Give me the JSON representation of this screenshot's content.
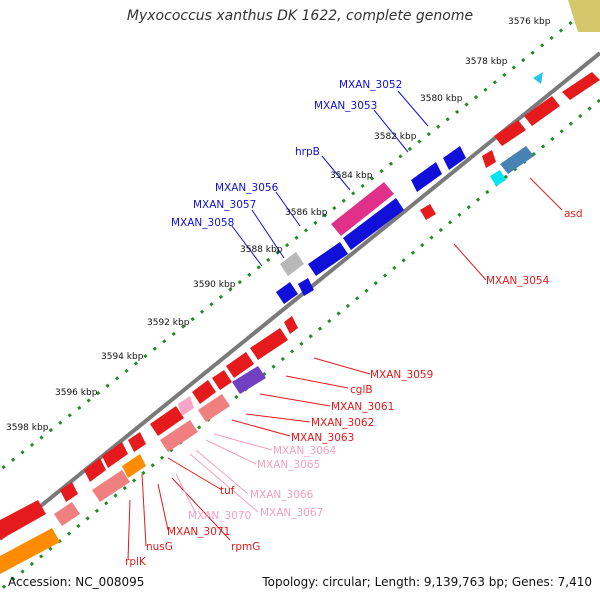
{
  "title": "Myxococcus xanthus DK 1622, complete genome",
  "footer": {
    "accession": "Accession: NC_008095",
    "summary": "Topology: circular; Length: 9,139,763 bp; Genes: 7,410"
  },
  "colors": {
    "ring": "#7a7a7a",
    "tick": "#228b22",
    "red_gene": "#e41a1c",
    "pink_gene": "#f08080",
    "blue_gene": "#1010d8",
    "steel_gene": "#4682b4",
    "magenta_gene": "#e0308a",
    "orange_gene": "#ff8c00",
    "gray_gene": "#b8b8b8",
    "khaki_gene": "#d4c66a",
    "cyan_gene": "#00e5ee"
  },
  "kbp_labels": [
    "3576 kbp",
    "3578 kbp",
    "3580 kbp",
    "3582 kbp",
    "3584 kbp",
    "3586 kbp",
    "3588 kbp",
    "3590 kbp",
    "3592 kbp",
    "3594 kbp",
    "3596 kbp",
    "3598 kbp"
  ],
  "gene_labels": [
    "MXAN_3052",
    "MXAN_3053",
    "hrpB",
    "MXAN_3056",
    "MXAN_3057",
    "MXAN_3058",
    "asd",
    "MXAN_3054",
    "MXAN_3059",
    "cglB",
    "MXAN_3061",
    "MXAN_3062",
    "MXAN_3063",
    "MXAN_3064",
    "MXAN_3065",
    "MXAN_3066",
    "MXAN_3067",
    "tuf",
    "MXAN_3070",
    "MXAN_3071",
    "rpmG",
    "nusG",
    "rplK"
  ]
}
